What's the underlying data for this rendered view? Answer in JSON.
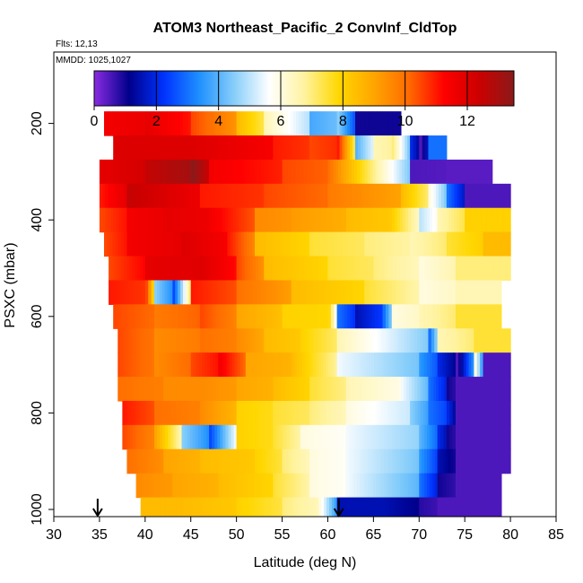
{
  "chart_data": {
    "type": "heatmap",
    "title": "ATOM3 Northeast_Pacific_2 ConvInf_CldTop",
    "notes": [
      "Flts: 12,13",
      "MMDD: 1025,1027"
    ],
    "xlabel": "Latitude (deg N)",
    "ylabel": "PSXC (mbar)",
    "xlim": [
      30,
      85
    ],
    "ylim": [
      1000,
      0
    ],
    "x_ticks": [
      "30",
      "35",
      "40",
      "45",
      "50",
      "55",
      "60",
      "65",
      "70",
      "75",
      "80",
      "85"
    ],
    "y_ticks": [
      "200",
      "400",
      "600",
      "800",
      "1000"
    ],
    "colorbar": {
      "range": [
        0,
        13.5
      ],
      "ticks": [
        "0",
        "2",
        "4",
        "6",
        "8",
        "10",
        "12"
      ],
      "colors": [
        "#8a2be2",
        "#00008b",
        "#0033ff",
        "#1e90ff",
        "#87cefa",
        "#ffffff",
        "#fff3a0",
        "#ffd700",
        "#ffa500",
        "#ff6a00",
        "#ff0000",
        "#cc0000",
        "#8b1a1a"
      ]
    },
    "arrows_at_latitude": [
      34.8,
      61.2
    ],
    "bands": [
      {
        "p": 200,
        "cells": [
          [
            35.5,
            11.5
          ],
          [
            40,
            11.8
          ],
          [
            45,
            10.5
          ],
          [
            50,
            8.5
          ],
          [
            53,
            6.5
          ],
          [
            58,
            3.8
          ],
          [
            61,
            4.5
          ],
          [
            63,
            1.0
          ],
          [
            68,
            null
          ]
        ]
      },
      {
        "p": 250,
        "cells": [
          [
            36.5,
            12.0
          ],
          [
            45,
            12.0
          ],
          [
            54,
            11.0
          ],
          [
            58,
            10.5
          ],
          [
            61,
            11.0
          ],
          [
            63,
            4.0
          ],
          [
            65,
            6.5
          ],
          [
            67,
            7.0
          ],
          [
            69,
            2.0
          ],
          [
            70,
            0.5
          ],
          [
            71,
            3.0
          ],
          [
            73,
            null
          ]
        ]
      },
      {
        "p": 300,
        "cells": [
          [
            35,
            11.8
          ],
          [
            40,
            12.5
          ],
          [
            45,
            13.5
          ],
          [
            47,
            11.5
          ],
          [
            55,
            10.5
          ],
          [
            60,
            10.0
          ],
          [
            69,
            0.5
          ],
          [
            73,
            0.4
          ],
          [
            78,
            null
          ]
        ]
      },
      {
        "p": 350,
        "cells": [
          [
            35,
            11.0
          ],
          [
            38,
            12.5
          ],
          [
            46,
            11.0
          ],
          [
            53,
            10.5
          ],
          [
            60,
            9.8
          ],
          [
            68,
            8.5
          ],
          [
            71,
            6.0
          ],
          [
            73,
            3.0
          ],
          [
            75,
            0.5
          ],
          [
            80,
            null
          ]
        ]
      },
      {
        "p": 400,
        "cells": [
          [
            35,
            10.5
          ],
          [
            38,
            11.5
          ],
          [
            42,
            11.8
          ],
          [
            47,
            11.5
          ],
          [
            52,
            9.5
          ],
          [
            56,
            9.2
          ],
          [
            62,
            8.5
          ],
          [
            67,
            8.0
          ],
          [
            70,
            5.0
          ],
          [
            72,
            6.5
          ],
          [
            75,
            8.0
          ],
          [
            80,
            null
          ]
        ]
      },
      {
        "p": 450,
        "cells": [
          [
            35.5,
            10.5
          ],
          [
            38,
            11.5
          ],
          [
            44,
            12.0
          ],
          [
            49,
            11.0
          ],
          [
            52,
            8.5
          ],
          [
            58,
            7.5
          ],
          [
            64,
            7.0
          ],
          [
            69,
            6.5
          ],
          [
            73,
            7.5
          ],
          [
            77,
            8.5
          ],
          [
            80,
            null
          ]
        ]
      },
      {
        "p": 500,
        "cells": [
          [
            36,
            10.5
          ],
          [
            40,
            11.8
          ],
          [
            46,
            12.0
          ],
          [
            50,
            10.5
          ],
          [
            53,
            8.5
          ],
          [
            60,
            7.5
          ],
          [
            65,
            7.0
          ],
          [
            70,
            6.0
          ],
          [
            74,
            7.0
          ],
          [
            80,
            null
          ]
        ]
      },
      {
        "p": 550,
        "cells": [
          [
            36,
            11.0
          ],
          [
            40,
            10.5
          ],
          [
            41,
            4.5
          ],
          [
            43,
            2.5
          ],
          [
            45,
            11.0
          ],
          [
            50,
            10.0
          ],
          [
            56,
            8.5
          ],
          [
            64,
            7.5
          ],
          [
            70,
            6.0
          ],
          [
            74,
            6.5
          ],
          [
            79,
            null
          ]
        ]
      },
      {
        "p": 600,
        "cells": [
          [
            36.5,
            10.5
          ],
          [
            41,
            9.8
          ],
          [
            46,
            10.5
          ],
          [
            50,
            9.0
          ],
          [
            55,
            8.0
          ],
          [
            60,
            7.8
          ],
          [
            61,
            3.0
          ],
          [
            63,
            1.5
          ],
          [
            66,
            3.0
          ],
          [
            67,
            6.0
          ],
          [
            70,
            6.5
          ],
          [
            74,
            7.5
          ],
          [
            79,
            null
          ]
        ]
      },
      {
        "p": 650,
        "cells": [
          [
            37,
            10.5
          ],
          [
            41,
            9.5
          ],
          [
            46,
            10.0
          ],
          [
            50,
            9.5
          ],
          [
            53,
            8.5
          ],
          [
            57,
            8.0
          ],
          [
            61,
            6.5
          ],
          [
            71,
            3.0
          ],
          [
            72,
            6.5
          ],
          [
            76,
            7.5
          ],
          [
            80,
            null
          ]
        ]
      },
      {
        "p": 700,
        "cells": [
          [
            37,
            10.5
          ],
          [
            41,
            9.5
          ],
          [
            45,
            10.5
          ],
          [
            48,
            11.5
          ],
          [
            51,
            9.0
          ],
          [
            56,
            8.5
          ],
          [
            61,
            5.5
          ],
          [
            70,
            3.5
          ],
          [
            72,
            2.0
          ],
          [
            74,
            0.5
          ],
          [
            76,
            6.0
          ],
          [
            77,
            0.5
          ],
          [
            80,
            null
          ]
        ]
      },
      {
        "p": 750,
        "cells": [
          [
            37,
            10.0
          ],
          [
            42,
            9.5
          ],
          [
            46,
            9.5
          ],
          [
            50,
            9.0
          ],
          [
            54,
            8.5
          ],
          [
            58,
            7.5
          ],
          [
            62,
            6.5
          ],
          [
            68,
            5.5
          ],
          [
            71,
            3.0
          ],
          [
            73,
            1.0
          ],
          [
            74,
            0.5
          ],
          [
            80,
            null
          ]
        ]
      },
      {
        "p": 800,
        "cells": [
          [
            37.5,
            11.0
          ],
          [
            41,
            10.0
          ],
          [
            46,
            9.5
          ],
          [
            50,
            8.0
          ],
          [
            54,
            7.5
          ],
          [
            58,
            7.0
          ],
          [
            62,
            6.0
          ],
          [
            69,
            4.5
          ],
          [
            71,
            3.0
          ],
          [
            73,
            2.0
          ],
          [
            74,
            0.5
          ],
          [
            80,
            null
          ]
        ]
      },
      {
        "p": 850,
        "cells": [
          [
            37.5,
            10.5
          ],
          [
            41,
            9.0
          ],
          [
            44,
            4.5
          ],
          [
            47,
            2.5
          ],
          [
            50,
            8.0
          ],
          [
            54,
            7.5
          ],
          [
            57,
            6.0
          ],
          [
            62,
            5.5
          ],
          [
            70,
            4.0
          ],
          [
            72,
            2.0
          ],
          [
            73,
            1.0
          ],
          [
            74,
            0.5
          ],
          [
            80,
            null
          ]
        ]
      },
      {
        "p": 900,
        "cells": [
          [
            38,
            10.0
          ],
          [
            42,
            9.0
          ],
          [
            46,
            8.5
          ],
          [
            52,
            8.0
          ],
          [
            55,
            7.0
          ],
          [
            58,
            6.0
          ],
          [
            62,
            5.5
          ],
          [
            70,
            3.5
          ],
          [
            72,
            1.5
          ],
          [
            74,
            0.5
          ],
          [
            80,
            null
          ]
        ]
      },
      {
        "p": 950,
        "cells": [
          [
            39,
            9.5
          ],
          [
            43,
            9.0
          ],
          [
            48,
            8.5
          ],
          [
            54,
            7.5
          ],
          [
            58,
            6.0
          ],
          [
            62,
            5.5
          ],
          [
            70,
            3.0
          ],
          [
            72,
            1.0
          ],
          [
            74,
            0.5
          ],
          [
            79,
            null
          ]
        ]
      },
      {
        "p": 1000,
        "cells": [
          [
            39.5,
            8.5
          ],
          [
            44,
            8.5
          ],
          [
            50,
            8.0
          ],
          [
            55,
            7.0
          ],
          [
            59,
            6.0
          ],
          [
            61,
            1.5
          ],
          [
            66,
            1.5
          ],
          [
            70,
            0.8
          ],
          [
            72,
            0.5
          ],
          [
            79,
            null
          ]
        ]
      }
    ]
  }
}
